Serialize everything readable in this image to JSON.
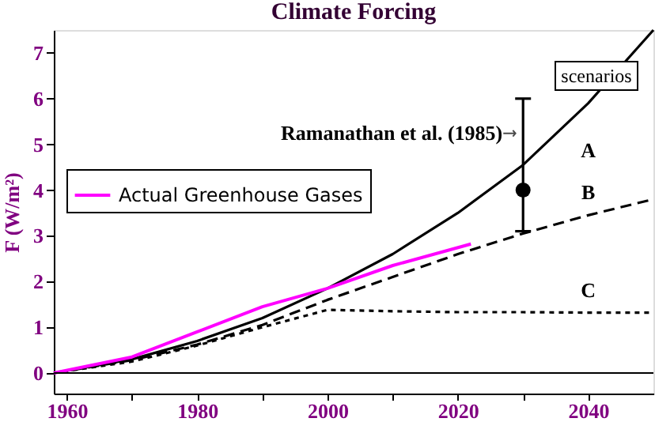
{
  "chart_data": {
    "type": "line",
    "title": "Climate Forcing",
    "ylabel": "F (W/m²)",
    "xlim": [
      1958,
      2050
    ],
    "ylim": [
      -0.45,
      7.5
    ],
    "xticks": [
      1960,
      {
        "value": 1970,
        "label": null
      },
      1980,
      {
        "value": 1990,
        "label": null
      },
      2000,
      {
        "value": 2010,
        "label": null
      },
      2020,
      {
        "value": 2030,
        "label": null
      },
      2040
    ],
    "yticks": [
      0,
      1,
      2,
      3,
      4,
      5,
      6,
      7
    ],
    "grid": false,
    "legend": "left",
    "annotations": [
      "scenarios",
      {
        "text": "Ramanathan et al. (1985)",
        "x": 2030,
        "y": 6.0
      }
    ],
    "ref_lines": [
      {
        "axis": "y",
        "value": 0,
        "color": "#000000"
      }
    ],
    "series": [
      {
        "name": "A",
        "color": "#000000",
        "line_style": "solid",
        "x": [
          1958,
          1970,
          1980,
          1990,
          2000,
          2010,
          2020,
          2030,
          2040,
          2050
        ],
        "values": [
          0,
          0.3,
          0.7,
          1.2,
          1.85,
          2.6,
          3.5,
          4.55,
          5.9,
          7.5
        ]
      },
      {
        "name": "B",
        "color": "#000000",
        "line_style": "dashed",
        "x": [
          1958,
          1970,
          1980,
          1990,
          2000,
          2010,
          2020,
          2030,
          2040,
          2050
        ],
        "values": [
          0,
          0.28,
          0.62,
          1.05,
          1.6,
          2.1,
          2.6,
          3.05,
          3.45,
          3.8
        ]
      },
      {
        "name": "C",
        "color": "#000000",
        "line_style": "dotted",
        "x": [
          1958,
          1970,
          1980,
          1990,
          2000,
          2010,
          2020,
          2030,
          2040,
          2050
        ],
        "values": [
          0,
          0.25,
          0.6,
          1.0,
          1.38,
          1.35,
          1.33,
          1.33,
          1.32,
          1.32
        ]
      },
      {
        "name": "Actual Greenhouse Gases",
        "color": "#ff00ff",
        "line_style": "solid",
        "x": [
          1958,
          1970,
          1980,
          1990,
          2000,
          2010,
          2022
        ],
        "values": [
          0,
          0.35,
          0.9,
          1.45,
          1.85,
          2.35,
          2.82
        ]
      },
      {
        "type": "scatter",
        "marker": "circle",
        "color": "#000000",
        "x": [
          2030
        ],
        "values": [
          4.0
        ],
        "errors": [
          [
            3.1,
            6.0
          ]
        ]
      }
    ]
  }
}
